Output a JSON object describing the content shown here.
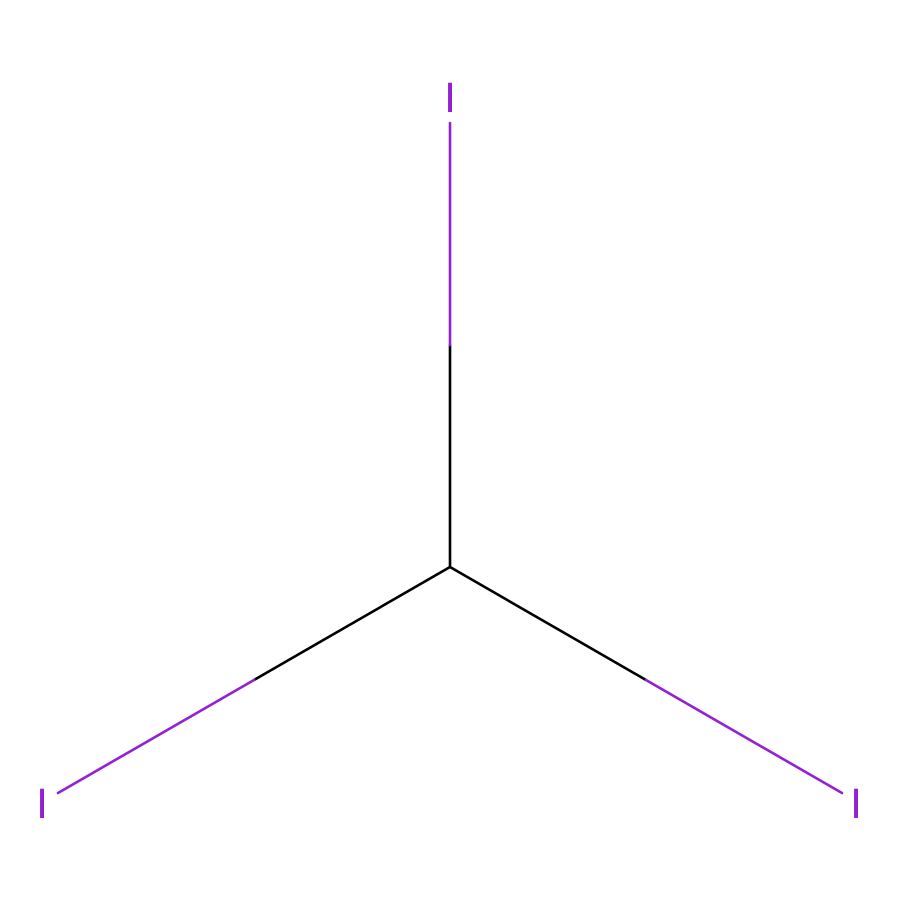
{
  "molecule": {
    "colors": {
      "carbon_bond": "#000000",
      "iodine": "#9420D4",
      "background": "#FFFFFF"
    },
    "atoms": {
      "top": "I",
      "left": "I",
      "right": "I"
    }
  }
}
